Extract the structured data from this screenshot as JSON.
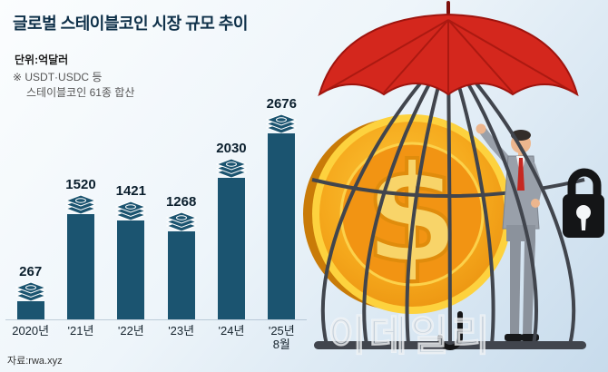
{
  "header": {
    "title": "글로벌 스테이블코인 시장 규모 추이",
    "unit_label": "단위:억달러",
    "note_line1": "※ USDT·USDC 등",
    "note_line2": "스테이블코인 61종 합산"
  },
  "chart_data": {
    "type": "bar",
    "title": "글로벌 스테이블코인 시장 규모 추이",
    "categories": [
      "2020년",
      "'21년",
      "'22년",
      "'23년",
      "'24년",
      "'25년\n8월"
    ],
    "values": [
      267,
      1520,
      1421,
      1268,
      2030,
      2676
    ],
    "value_labels": [
      "267",
      "1520",
      "1421",
      "1268",
      "2030",
      "2676"
    ],
    "xlabel": "",
    "ylabel": "억달러",
    "ylim": [
      0,
      2800
    ],
    "grid": false,
    "legend": false,
    "bar_color": "#1b5470",
    "bar_top_icon": "cash-stack-icon"
  },
  "footer": {
    "source": "자료:rwa.xyz"
  },
  "watermark": {
    "text": "이데일리"
  },
  "illustration": {
    "elements": [
      "red-umbrella",
      "birdcage",
      "gold-dollar-coin",
      "businessman",
      "padlock-icon",
      "umbrella-handle"
    ]
  },
  "colors": {
    "title_navy": "#0e3049",
    "bar": "#1b5470",
    "umbrella_red": "#d4271d",
    "coin_gold": "#f5a81c",
    "cage_dark": "#41454d"
  }
}
